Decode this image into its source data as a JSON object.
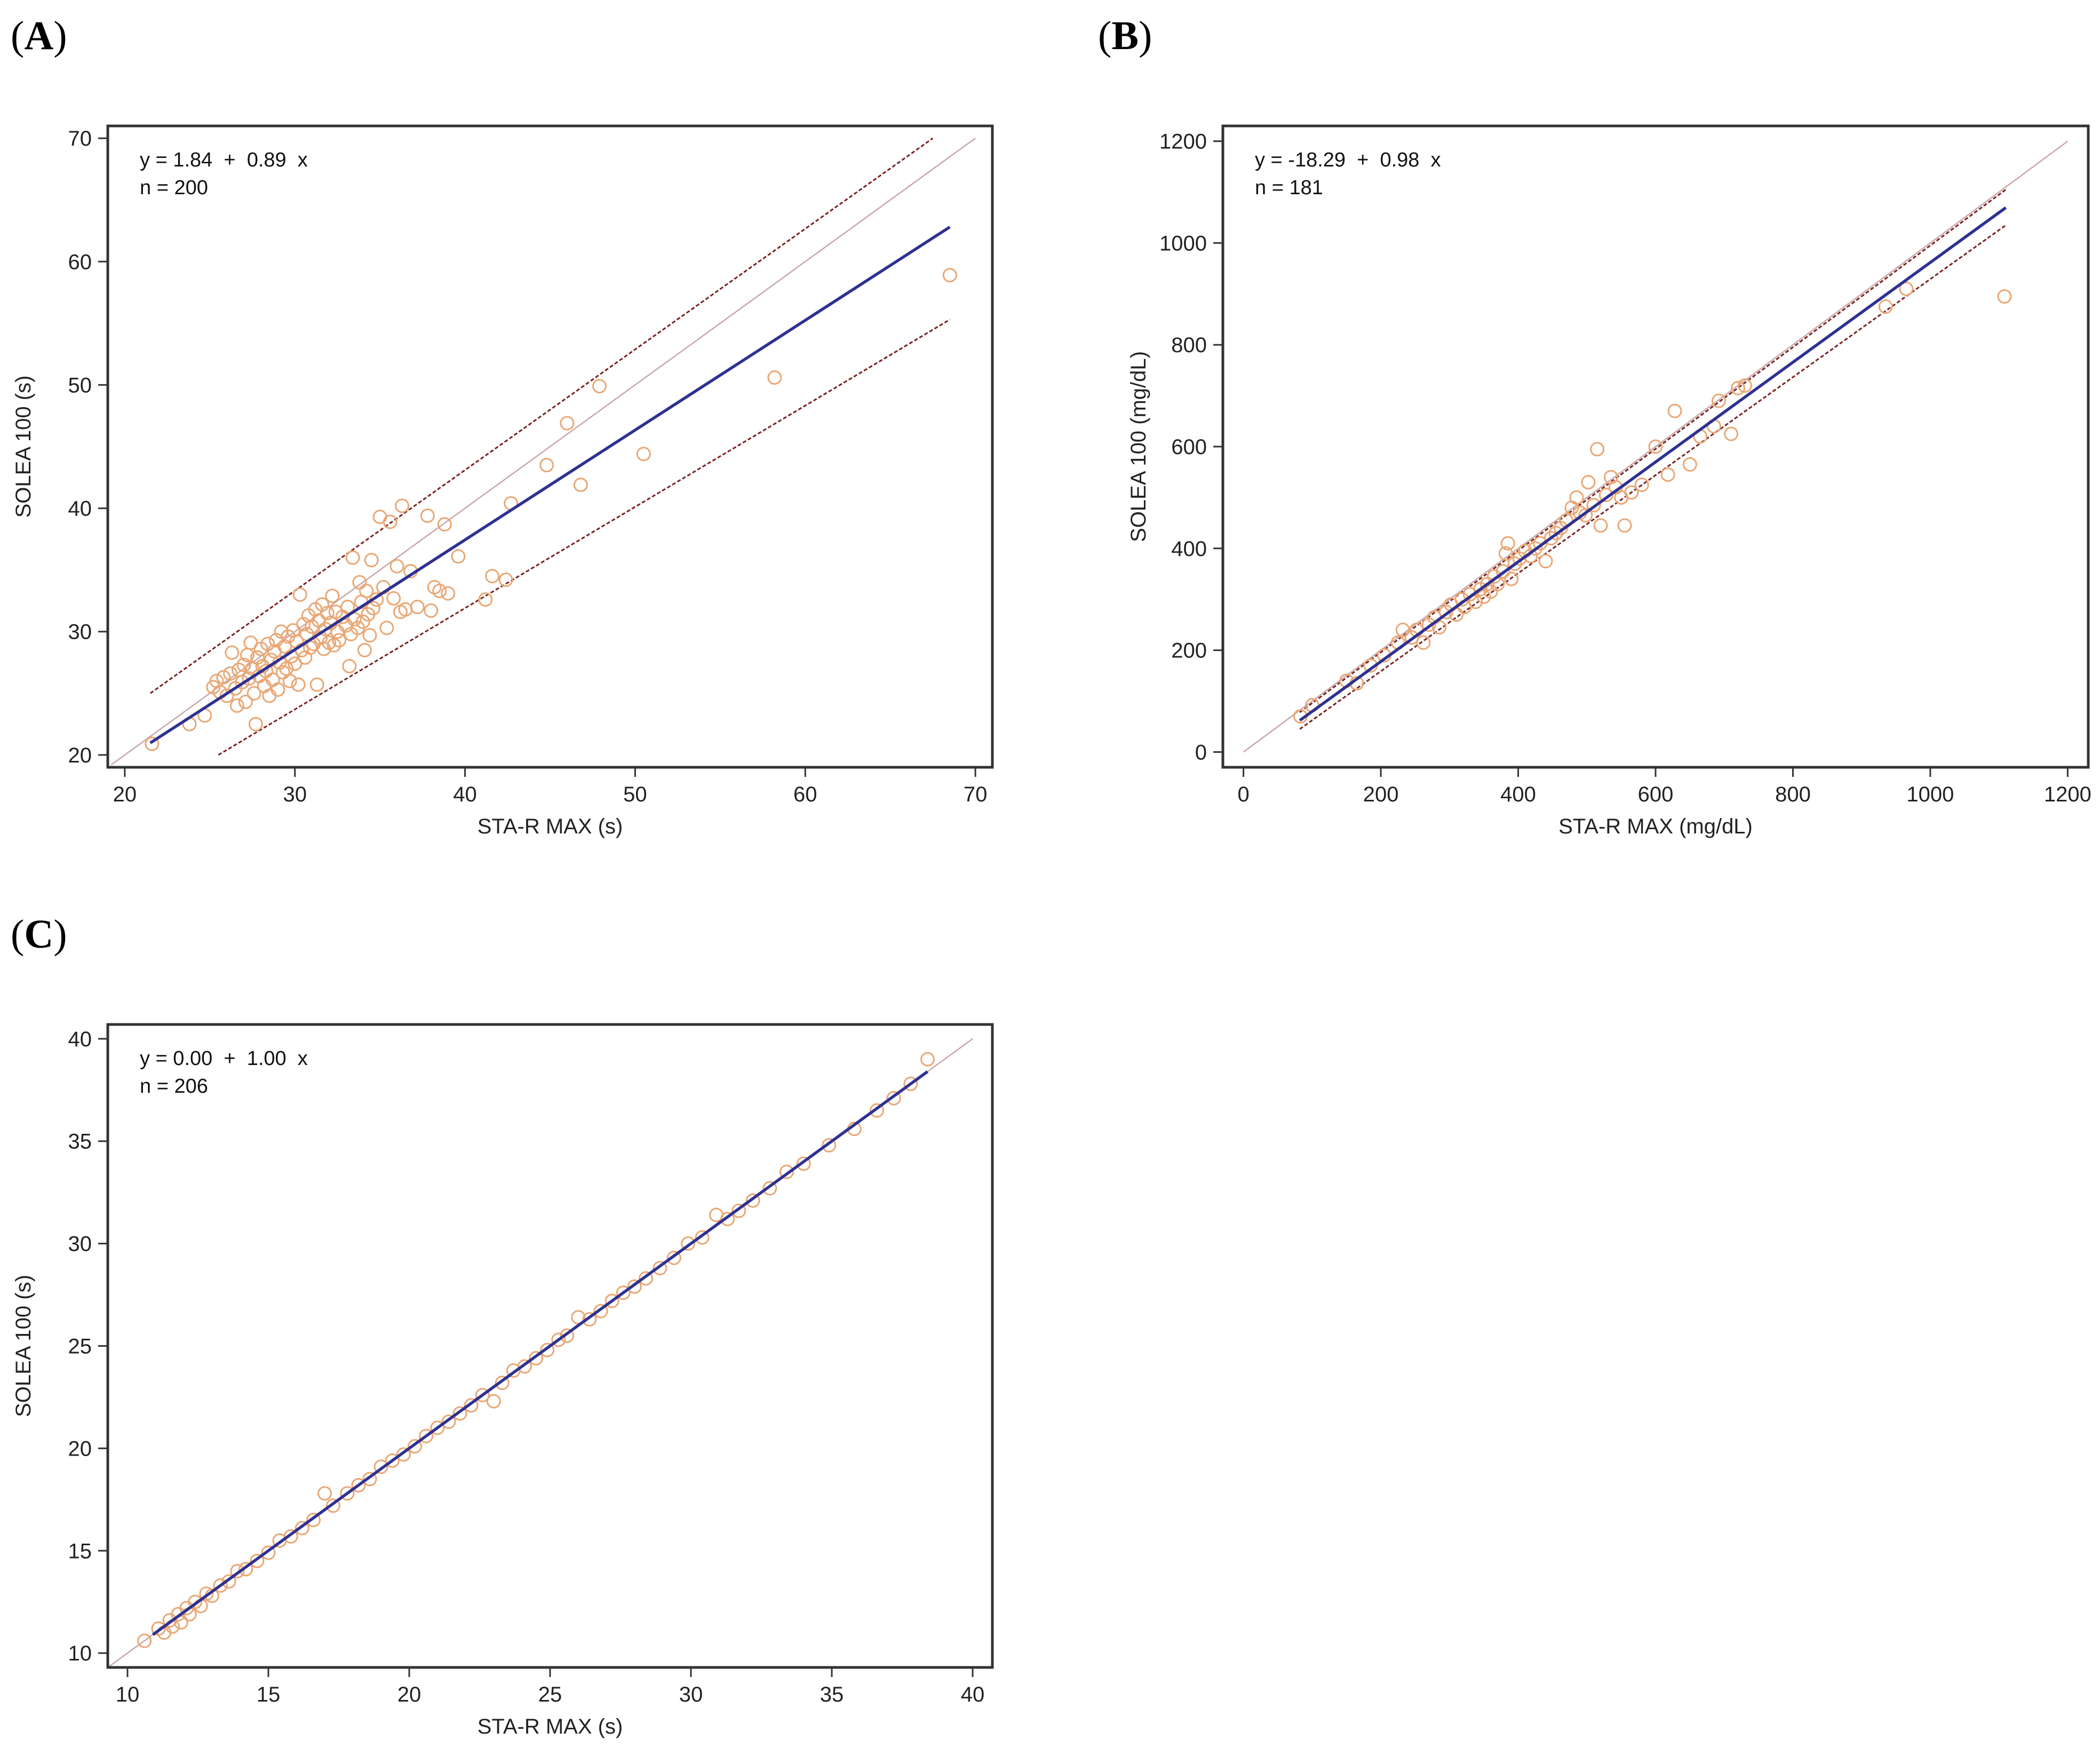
{
  "chart_data": [
    {
      "panel_label": "A",
      "type": "scatter",
      "title": "",
      "xlabel": "STA-R MAX (s)",
      "ylabel": "SOLEA 100 (s)",
      "xlim": [
        19,
        71
      ],
      "ylim": [
        19,
        71
      ],
      "xticks": [
        20,
        30,
        40,
        50,
        60,
        70
      ],
      "yticks": [
        20,
        30,
        40,
        50,
        60,
        70
      ],
      "equation": "y = 1.84  +  0.89  x",
      "n_label": "n = 200",
      "regression": {
        "intercept": 1.84,
        "slope": 0.89,
        "x_range": [
          21.5,
          68.5
        ]
      },
      "identity_line": {
        "x_range": [
          19.2,
          70.0
        ]
      },
      "ci_upper": {
        "x": [
          21.5,
          67.5
        ],
        "y": [
          25.0,
          70.0
        ]
      },
      "ci_lower": {
        "x": [
          25.5,
          68.5
        ],
        "y": [
          20.0,
          55.3
        ]
      },
      "colors": {
        "points": "#e9a774",
        "regression": "#2e3192",
        "ci": "#7a1f1f",
        "identity": "#c9a8a8",
        "frame": "#333333"
      },
      "points": [
        [
          21.6,
          20.9
        ],
        [
          23.8,
          22.5
        ],
        [
          24.7,
          23.2
        ],
        [
          25.2,
          25.5
        ],
        [
          25.4,
          26.0
        ],
        [
          25.6,
          25.1
        ],
        [
          25.8,
          26.3
        ],
        [
          26.0,
          24.8
        ],
        [
          26.2,
          26.6
        ],
        [
          26.3,
          28.3
        ],
        [
          26.5,
          25.4
        ],
        [
          26.6,
          24.0
        ],
        [
          26.7,
          26.9
        ],
        [
          26.9,
          25.9
        ],
        [
          27.0,
          27.3
        ],
        [
          27.1,
          24.3
        ],
        [
          27.2,
          28.1
        ],
        [
          27.3,
          26.2
        ],
        [
          27.4,
          29.1
        ],
        [
          27.5,
          27.0
        ],
        [
          27.6,
          25.0
        ],
        [
          27.7,
          22.5
        ],
        [
          27.8,
          27.9
        ],
        [
          27.9,
          26.4
        ],
        [
          28.0,
          28.6
        ],
        [
          28.1,
          27.2
        ],
        [
          28.2,
          25.6
        ],
        [
          28.3,
          26.8
        ],
        [
          28.4,
          29.0
        ],
        [
          28.5,
          24.8
        ],
        [
          28.6,
          27.7
        ],
        [
          28.7,
          26.1
        ],
        [
          28.8,
          28.4
        ],
        [
          28.9,
          29.3
        ],
        [
          29.0,
          25.3
        ],
        [
          29.1,
          27.5
        ],
        [
          29.2,
          30.0
        ],
        [
          29.3,
          26.7
        ],
        [
          29.4,
          28.8
        ],
        [
          29.5,
          27.0
        ],
        [
          29.6,
          29.6
        ],
        [
          29.7,
          26.0
        ],
        [
          29.8,
          28.0
        ],
        [
          29.9,
          30.1
        ],
        [
          30.0,
          27.4
        ],
        [
          30.1,
          29.2
        ],
        [
          30.2,
          25.7
        ],
        [
          30.3,
          33.0
        ],
        [
          30.4,
          28.5
        ],
        [
          30.5,
          30.6
        ],
        [
          30.6,
          27.9
        ],
        [
          30.7,
          29.8
        ],
        [
          30.8,
          31.3
        ],
        [
          30.9,
          28.7
        ],
        [
          31.0,
          30.4
        ],
        [
          31.1,
          29.0
        ],
        [
          31.2,
          31.8
        ],
        [
          31.3,
          25.7
        ],
        [
          31.4,
          30.9
        ],
        [
          31.5,
          29.5
        ],
        [
          31.6,
          32.2
        ],
        [
          31.7,
          28.6
        ],
        [
          31.8,
          30.2
        ],
        [
          31.9,
          31.5
        ],
        [
          32.0,
          29.1
        ],
        [
          32.1,
          30.7
        ],
        [
          32.2,
          32.9
        ],
        [
          32.3,
          28.9
        ],
        [
          32.4,
          31.6
        ],
        [
          32.5,
          30.0
        ],
        [
          32.6,
          29.3
        ],
        [
          32.8,
          31.2
        ],
        [
          33.0,
          30.5
        ],
        [
          33.1,
          32.0
        ],
        [
          33.2,
          27.2
        ],
        [
          33.3,
          29.8
        ],
        [
          33.4,
          36.0
        ],
        [
          33.5,
          31.0
        ],
        [
          33.7,
          30.3
        ],
        [
          33.8,
          34.0
        ],
        [
          33.9,
          32.4
        ],
        [
          34.0,
          30.8
        ],
        [
          34.1,
          28.5
        ],
        [
          34.2,
          33.3
        ],
        [
          34.3,
          31.4
        ],
        [
          34.4,
          29.7
        ],
        [
          34.5,
          35.8
        ],
        [
          34.6,
          31.9
        ],
        [
          34.8,
          32.6
        ],
        [
          35.0,
          39.3
        ],
        [
          35.2,
          33.6
        ],
        [
          35.4,
          30.3
        ],
        [
          35.6,
          38.9
        ],
        [
          35.8,
          32.7
        ],
        [
          36.0,
          35.3
        ],
        [
          36.2,
          31.6
        ],
        [
          36.3,
          40.2
        ],
        [
          36.5,
          31.8
        ],
        [
          36.8,
          34.9
        ],
        [
          37.2,
          32.0
        ],
        [
          37.8,
          39.4
        ],
        [
          38.0,
          31.7
        ],
        [
          38.2,
          33.6
        ],
        [
          38.5,
          33.3
        ],
        [
          38.8,
          38.7
        ],
        [
          39.0,
          33.1
        ],
        [
          39.6,
          36.1
        ],
        [
          41.2,
          32.6
        ],
        [
          41.6,
          34.5
        ],
        [
          42.4,
          34.2
        ],
        [
          42.7,
          40.4
        ],
        [
          44.8,
          43.5
        ],
        [
          46.0,
          46.9
        ],
        [
          46.8,
          41.9
        ],
        [
          47.9,
          49.9
        ],
        [
          50.5,
          44.4
        ],
        [
          58.2,
          50.6
        ],
        [
          68.5,
          58.9
        ]
      ]
    },
    {
      "panel_label": "B",
      "type": "scatter",
      "title": "",
      "xlabel": "STA-R MAX (mg/dL)",
      "ylabel": "SOLEA 100 (mg/dL)",
      "xlim": [
        -30,
        1230
      ],
      "ylim": [
        -30,
        1230
      ],
      "xticks": [
        0,
        200,
        400,
        600,
        800,
        1000,
        1200
      ],
      "yticks": [
        0,
        200,
        400,
        600,
        800,
        1000,
        1200
      ],
      "equation": "y = -18.29  +  0.98  x",
      "n_label": "n = 181",
      "regression": {
        "intercept": -18.29,
        "slope": 0.98,
        "x_range": [
          82,
          1110
        ]
      },
      "identity_line": {
        "x_range": [
          0,
          1200
        ]
      },
      "ci_upper": {
        "x": [
          82,
          1110
        ],
        "y": [
          78,
          1105
        ]
      },
      "ci_lower": {
        "x": [
          82,
          1110
        ],
        "y": [
          45,
          1035
        ]
      },
      "colors": {
        "points": "#e9a774",
        "regression": "#2e3192",
        "ci": "#7a1f1f",
        "identity": "#c9a8a8",
        "frame": "#333333"
      },
      "points": [
        [
          83,
          70
        ],
        [
          100,
          92
        ],
        [
          150,
          140
        ],
        [
          165,
          135
        ],
        [
          185,
          170
        ],
        [
          205,
          190
        ],
        [
          225,
          215
        ],
        [
          232,
          240
        ],
        [
          245,
          225
        ],
        [
          252,
          240
        ],
        [
          262,
          215
        ],
        [
          270,
          250
        ],
        [
          278,
          265
        ],
        [
          285,
          245
        ],
        [
          295,
          275
        ],
        [
          302,
          290
        ],
        [
          310,
          270
        ],
        [
          318,
          300
        ],
        [
          322,
          285
        ],
        [
          330,
          310
        ],
        [
          338,
          295
        ],
        [
          345,
          320
        ],
        [
          350,
          305
        ],
        [
          355,
          330
        ],
        [
          360,
          315
        ],
        [
          365,
          345
        ],
        [
          370,
          330
        ],
        [
          378,
          355
        ],
        [
          382,
          390
        ],
        [
          385,
          410
        ],
        [
          390,
          340
        ],
        [
          395,
          370
        ],
        [
          402,
          380
        ],
        [
          410,
          395
        ],
        [
          418,
          385
        ],
        [
          425,
          400
        ],
        [
          432,
          410
        ],
        [
          440,
          375
        ],
        [
          448,
          420
        ],
        [
          455,
          430
        ],
        [
          462,
          440
        ],
        [
          470,
          455
        ],
        [
          478,
          480
        ],
        [
          485,
          500
        ],
        [
          490,
          470
        ],
        [
          498,
          465
        ],
        [
          502,
          530
        ],
        [
          510,
          485
        ],
        [
          515,
          595
        ],
        [
          520,
          445
        ],
        [
          528,
          505
        ],
        [
          535,
          540
        ],
        [
          542,
          520
        ],
        [
          550,
          500
        ],
        [
          555,
          445
        ],
        [
          565,
          510
        ],
        [
          580,
          525
        ],
        [
          600,
          600
        ],
        [
          618,
          545
        ],
        [
          628,
          670
        ],
        [
          650,
          565
        ],
        [
          665,
          620
        ],
        [
          685,
          640
        ],
        [
          692,
          690
        ],
        [
          710,
          625
        ],
        [
          720,
          715
        ],
        [
          730,
          720
        ],
        [
          935,
          875
        ],
        [
          965,
          910
        ],
        [
          1108,
          895
        ]
      ]
    },
    {
      "panel_label": "C",
      "type": "scatter",
      "title": "",
      "xlabel": "STA-R MAX (s)",
      "ylabel": "SOLEA 100 (s)",
      "xlim": [
        9.3,
        40.7
      ],
      "ylim": [
        9.3,
        40.7
      ],
      "xticks": [
        10,
        15,
        20,
        25,
        30,
        35,
        40
      ],
      "yticks": [
        10,
        15,
        20,
        25,
        30,
        35,
        40
      ],
      "equation": "y = 0.00  +  1.00  x",
      "n_label": "n = 206",
      "regression": {
        "intercept": 0.0,
        "slope": 1.0,
        "x_range": [
          10.9,
          38.4
        ]
      },
      "identity_line": {
        "x_range": [
          9.3,
          40.0
        ]
      },
      "ci_upper": null,
      "ci_lower": null,
      "colors": {
        "points": "#e9a774",
        "regression": "#2e3192",
        "ci": "#7a1f1f",
        "identity": "#c9a8a8",
        "frame": "#333333"
      },
      "points": [
        [
          10.6,
          10.6
        ],
        [
          11.1,
          11.2
        ],
        [
          11.3,
          11.0
        ],
        [
          11.5,
          11.6
        ],
        [
          11.6,
          11.3
        ],
        [
          11.8,
          11.9
        ],
        [
          11.9,
          11.5
        ],
        [
          12.1,
          12.2
        ],
        [
          12.2,
          11.9
        ],
        [
          12.4,
          12.5
        ],
        [
          12.6,
          12.3
        ],
        [
          12.8,
          12.9
        ],
        [
          13.0,
          12.8
        ],
        [
          13.3,
          13.3
        ],
        [
          13.6,
          13.5
        ],
        [
          13.9,
          14.0
        ],
        [
          14.2,
          14.1
        ],
        [
          14.6,
          14.5
        ],
        [
          15.0,
          14.9
        ],
        [
          15.4,
          15.5
        ],
        [
          15.8,
          15.7
        ],
        [
          16.2,
          16.1
        ],
        [
          16.6,
          16.5
        ],
        [
          17.0,
          17.8
        ],
        [
          17.3,
          17.2
        ],
        [
          17.8,
          17.8
        ],
        [
          18.2,
          18.2
        ],
        [
          18.6,
          18.5
        ],
        [
          19.0,
          19.1
        ],
        [
          19.4,
          19.4
        ],
        [
          19.8,
          19.7
        ],
        [
          20.2,
          20.1
        ],
        [
          20.6,
          20.6
        ],
        [
          21.0,
          21.0
        ],
        [
          21.4,
          21.3
        ],
        [
          21.8,
          21.7
        ],
        [
          22.2,
          22.1
        ],
        [
          22.6,
          22.6
        ],
        [
          23.0,
          22.3
        ],
        [
          23.3,
          23.2
        ],
        [
          23.7,
          23.8
        ],
        [
          24.1,
          24.0
        ],
        [
          24.5,
          24.4
        ],
        [
          24.9,
          24.8
        ],
        [
          25.3,
          25.3
        ],
        [
          25.6,
          25.5
        ],
        [
          26.0,
          26.4
        ],
        [
          26.4,
          26.3
        ],
        [
          26.8,
          26.7
        ],
        [
          27.2,
          27.2
        ],
        [
          27.6,
          27.6
        ],
        [
          28.0,
          27.9
        ],
        [
          28.4,
          28.3
        ],
        [
          28.9,
          28.8
        ],
        [
          29.4,
          29.3
        ],
        [
          29.9,
          30.0
        ],
        [
          30.4,
          30.3
        ],
        [
          30.9,
          31.4
        ],
        [
          31.3,
          31.2
        ],
        [
          31.7,
          31.6
        ],
        [
          32.2,
          32.1
        ],
        [
          32.8,
          32.7
        ],
        [
          33.4,
          33.5
        ],
        [
          34.0,
          33.9
        ],
        [
          34.9,
          34.8
        ],
        [
          35.8,
          35.6
        ],
        [
          36.6,
          36.5
        ],
        [
          37.2,
          37.1
        ],
        [
          37.8,
          37.8
        ],
        [
          38.4,
          39.0
        ]
      ]
    }
  ]
}
